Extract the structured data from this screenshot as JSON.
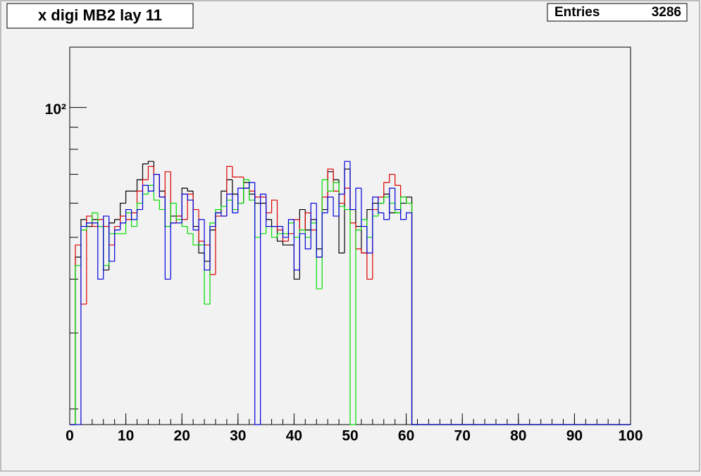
{
  "chart_data": {
    "type": "histogram",
    "title": "x digi MB2 lay 11",
    "stats": {
      "label": "Entries",
      "value": 3286
    },
    "bins": [
      0,
      1,
      2,
      3,
      4,
      5,
      6,
      7,
      8,
      9,
      10,
      11,
      12,
      13,
      14,
      15,
      16,
      17,
      18,
      19,
      20,
      21,
      22,
      23,
      24,
      25,
      26,
      27,
      28,
      29,
      30,
      31,
      32,
      33,
      34,
      35,
      36,
      37,
      38,
      39,
      40,
      41,
      42,
      43,
      44,
      45,
      46,
      47,
      48,
      49,
      50,
      51,
      52,
      53,
      54,
      55,
      56,
      57,
      58,
      59,
      60,
      61,
      62,
      63,
      64,
      65,
      66,
      67,
      68,
      69,
      70,
      71,
      72,
      73,
      74,
      75,
      76,
      77,
      78,
      79,
      80,
      81,
      82,
      83,
      84,
      85,
      86,
      87,
      88,
      89,
      90,
      91,
      92,
      93,
      94,
      95,
      96,
      97,
      98,
      99,
      100
    ],
    "series": [
      {
        "color": "#000000",
        "values": [
          0,
          45,
          55,
          53,
          55,
          53,
          42,
          54,
          55,
          60,
          64,
          64,
          68,
          74,
          75,
          70,
          64,
          53,
          56,
          56,
          65,
          64,
          53,
          46,
          44,
          52,
          57,
          64,
          68,
          63,
          60,
          67,
          63,
          60,
          60,
          55,
          53,
          49,
          48,
          48,
          40,
          58,
          52,
          55,
          47,
          58,
          71,
          68,
          46,
          72,
          58,
          53,
          46,
          58,
          60,
          60,
          63,
          57,
          57,
          60,
          62,
          0,
          0,
          0,
          0,
          0,
          0,
          0,
          0,
          0,
          0,
          0,
          0,
          0,
          0,
          0,
          0,
          0,
          0,
          0,
          0,
          0,
          0,
          0,
          0,
          0,
          0,
          0,
          0,
          0,
          0,
          0,
          0,
          0,
          0,
          0,
          0,
          0,
          0,
          0
        ]
      },
      {
        "color": "#dd0000",
        "values": [
          0,
          48,
          35,
          56,
          53,
          55,
          53,
          48,
          53,
          56,
          55,
          57,
          64,
          68,
          73,
          70,
          62,
          71,
          54,
          56,
          55,
          63,
          58,
          49,
          48,
          41,
          56,
          56,
          73,
          69,
          69,
          65,
          64,
          62,
          62,
          57,
          61,
          52,
          49,
          51,
          55,
          52,
          57,
          52,
          45,
          62,
          72,
          64,
          60,
          65,
          54,
          47,
          46,
          40,
          58,
          62,
          67,
          70,
          66,
          62,
          60,
          0,
          0,
          0,
          0,
          0,
          0,
          0,
          0,
          0,
          0,
          0,
          0,
          0,
          0,
          0,
          0,
          0,
          0,
          0,
          0,
          0,
          0,
          0,
          0,
          0,
          0,
          0,
          0,
          0,
          0,
          0,
          0,
          0,
          0,
          0,
          0,
          0,
          0,
          0
        ]
      },
      {
        "color": "#00dd00",
        "values": [
          0,
          43,
          52,
          54,
          57,
          53,
          43,
          51,
          51,
          51,
          57,
          53,
          60,
          63,
          66,
          61,
          58,
          53,
          60,
          55,
          53,
          51,
          48,
          48,
          35,
          54,
          58,
          59,
          61,
          58,
          60,
          68,
          61,
          50,
          51,
          53,
          50,
          51,
          51,
          54,
          50,
          52,
          50,
          54,
          38,
          68,
          64,
          67,
          59,
          58,
          0,
          52,
          55,
          50,
          56,
          60,
          62,
          60,
          57,
          62,
          60,
          0,
          0,
          0,
          0,
          0,
          0,
          0,
          0,
          0,
          0,
          0,
          0,
          0,
          0,
          0,
          0,
          0,
          0,
          0,
          0,
          0,
          0,
          0,
          0,
          0,
          0,
          0,
          0,
          0,
          0,
          0,
          0,
          0,
          0,
          0,
          0,
          0,
          0,
          0
        ]
      },
      {
        "color": "#0000dd",
        "values": [
          0,
          0,
          53,
          54,
          54,
          40,
          56,
          44,
          52,
          54,
          58,
          55,
          58,
          66,
          64,
          70,
          62,
          40,
          54,
          54,
          63,
          61,
          52,
          55,
          42,
          53,
          57,
          56,
          63,
          57,
          65,
          65,
          67,
          0,
          63,
          53,
          53,
          53,
          50,
          55,
          42,
          51,
          47,
          60,
          45,
          57,
          62,
          56,
          63,
          75,
          58,
          65,
          53,
          46,
          62,
          57,
          55,
          65,
          58,
          55,
          57,
          0,
          0,
          0,
          0,
          0,
          0,
          0,
          0,
          0,
          0,
          0,
          0,
          0,
          0,
          0,
          0,
          0,
          0,
          0,
          0,
          0,
          0,
          0,
          0,
          0,
          0,
          0,
          0,
          0,
          0,
          0,
          0,
          0,
          0,
          0,
          0,
          0,
          0,
          0
        ]
      }
    ],
    "xlim": [
      0,
      100
    ],
    "xticks": [
      0,
      10,
      20,
      30,
      40,
      50,
      60,
      70,
      80,
      90,
      100
    ],
    "xminor_step": 2,
    "ylim": [
      18.4,
      138
    ],
    "log_y": true,
    "yticks": [
      {
        "value": 100,
        "label": "10²"
      }
    ],
    "yminor": [
      20,
      30,
      40,
      50,
      60,
      70,
      80,
      90
    ]
  }
}
